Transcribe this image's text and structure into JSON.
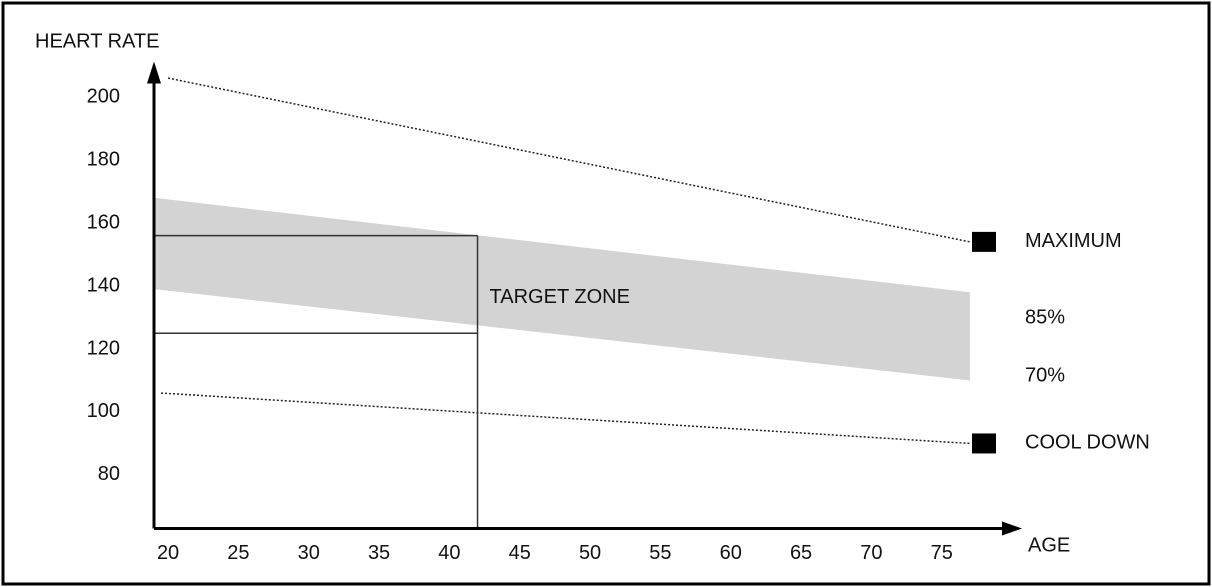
{
  "chart_data": {
    "type": "line",
    "y_label": "HEART RATE",
    "x_label": "AGE",
    "xlim": [
      19,
      79
    ],
    "ylim": [
      63,
      210
    ],
    "xticks": [
      20,
      25,
      30,
      35,
      40,
      45,
      50,
      55,
      60,
      65,
      70,
      75
    ],
    "yticks": [
      80,
      100,
      120,
      140,
      160,
      180,
      200
    ],
    "series": [
      {
        "name": "MAXIMUM",
        "color": "#222222",
        "style": "dotted",
        "marker": true,
        "x": [
          20,
          77
        ],
        "values": [
          206,
          154
        ]
      },
      {
        "name": "85%",
        "color": "#d3d3d3",
        "style": "band-top",
        "marker": false,
        "x": [
          19,
          77
        ],
        "values": [
          168,
          138
        ]
      },
      {
        "name": "70%",
        "color": "#d3d3d3",
        "style": "band-bottom",
        "marker": false,
        "x": [
          19,
          77
        ],
        "values": [
          139,
          110
        ]
      },
      {
        "name": "COOL DOWN",
        "color": "#222222",
        "style": "dotted",
        "marker": true,
        "x": [
          19.5,
          77
        ],
        "values": [
          106,
          90
        ]
      }
    ],
    "target_zone": {
      "label": "TARGET ZONE",
      "age": 42,
      "upper": 156,
      "lower": 125
    }
  }
}
